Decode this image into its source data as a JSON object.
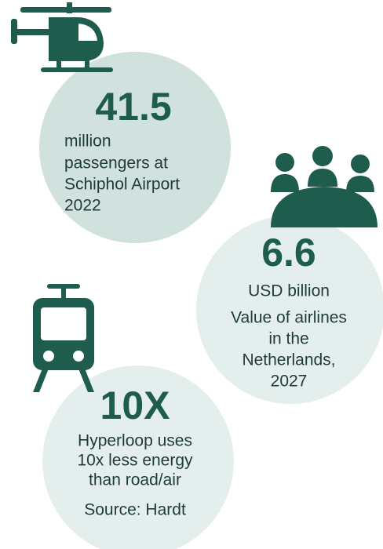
{
  "stats": [
    {
      "value": "41.5",
      "lines": [
        "million",
        "passengers at",
        "Schiphol Airport",
        "2022"
      ]
    },
    {
      "value": "6.6",
      "lines": [
        "USD billion",
        "Value of airlines",
        "in the",
        "Netherlands,",
        "2027"
      ]
    },
    {
      "value": "10X",
      "lines": [
        "Hyperloop uses",
        "10x less energy",
        "than road/air",
        "Source: Hardt"
      ]
    }
  ]
}
